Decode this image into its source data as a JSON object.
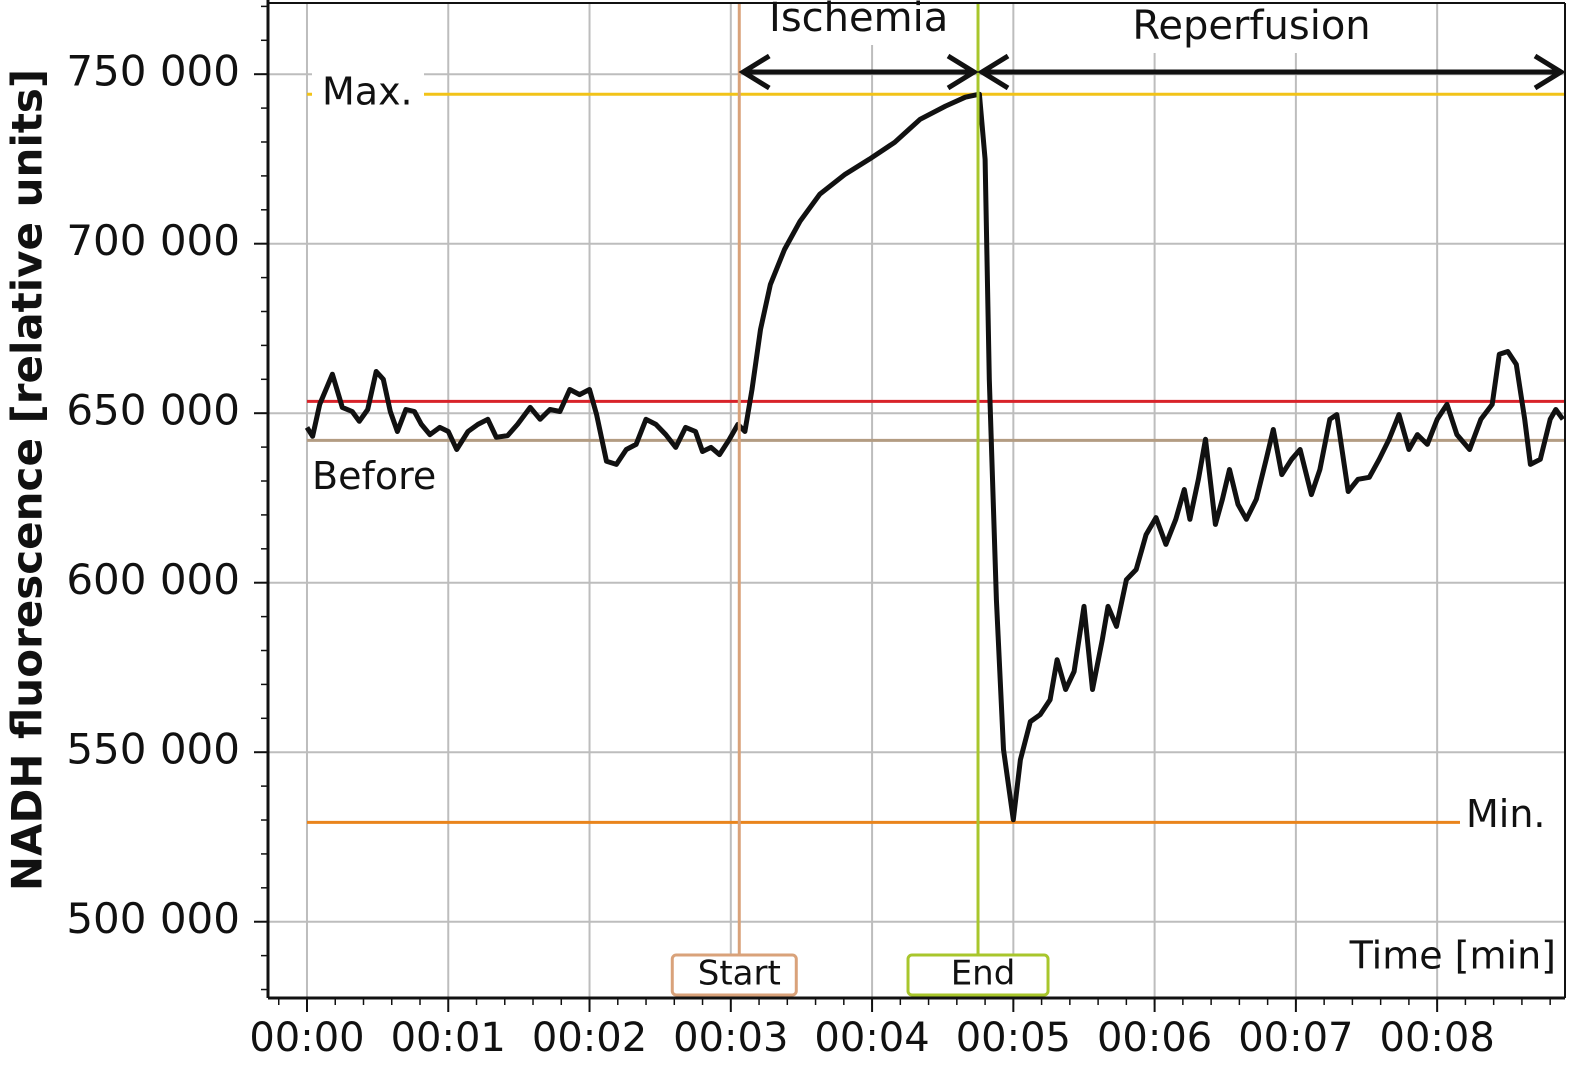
{
  "chart_data": {
    "type": "line",
    "y_label": "NADH fluorescence [relative units]",
    "x_label": "Time [min]",
    "xlim": [
      -0.276,
      8.905
    ],
    "ylim": [
      477500,
      771000
    ],
    "xticks": [
      {
        "value": 0,
        "label": "00:00"
      },
      {
        "value": 1,
        "label": "00:01"
      },
      {
        "value": 2,
        "label": "00:02"
      },
      {
        "value": 3,
        "label": "00:03"
      },
      {
        "value": 4,
        "label": "00:04"
      },
      {
        "value": 5,
        "label": "00:05"
      },
      {
        "value": 6,
        "label": "00:06"
      },
      {
        "value": 7,
        "label": "00:07"
      },
      {
        "value": 8,
        "label": "00:08"
      }
    ],
    "yticks": [
      {
        "value": 500000,
        "label": "500 000"
      },
      {
        "value": 550000,
        "label": "550 000"
      },
      {
        "value": 600000,
        "label": "600 000"
      },
      {
        "value": 650000,
        "label": "650 000"
      },
      {
        "value": 700000,
        "label": "700 000"
      },
      {
        "value": 750000,
        "label": "750 000"
      }
    ],
    "xminor": 0.2,
    "yminor": 10000,
    "grid": true,
    "hlines": [
      {
        "label": "Max.",
        "value": 744100,
        "color": "#f2c318"
      },
      {
        "value": 653500,
        "color": "#d8232a"
      },
      {
        "label": "Before",
        "value": 642000,
        "color": "#b39c82"
      },
      {
        "label": "Min.",
        "value": 529300,
        "color": "#e9841c"
      }
    ],
    "vlines": [
      {
        "label": "Start",
        "value": 3.06,
        "color": "#d9a27a"
      },
      {
        "label": "End",
        "value": 4.75,
        "color": "#a8c62c"
      }
    ],
    "phases": [
      {
        "label": "Ischemia"
      },
      {
        "label": "Reperfusion"
      }
    ],
    "series": [
      {
        "color": "#111111",
        "x": [
          0,
          0.04,
          0.09,
          0.18,
          0.25,
          0.32,
          0.37,
          0.43,
          0.49,
          0.54,
          0.59,
          0.64,
          0.7,
          0.76,
          0.81,
          0.87,
          0.94,
          1.0,
          1.06,
          1.14,
          1.21,
          1.28,
          1.34,
          1.42,
          1.49,
          1.58,
          1.65,
          1.72,
          1.79,
          1.86,
          1.93,
          2.0,
          2.05,
          2.12,
          2.19,
          2.26,
          2.33,
          2.4,
          2.47,
          2.54,
          2.61,
          2.68,
          2.75,
          2.8,
          2.86,
          2.92,
          2.99,
          3.05,
          3.1,
          3.15,
          3.21,
          3.28,
          3.38,
          3.49,
          3.63,
          3.81,
          3.98,
          4.16,
          4.34,
          4.52,
          4.66,
          4.76,
          4.8,
          4.83,
          4.88,
          4.93,
          5.0,
          5.05,
          5.12,
          5.19,
          5.26,
          5.31,
          5.37,
          5.43,
          5.5,
          5.56,
          5.63,
          5.67,
          5.73,
          5.8,
          5.87,
          5.94,
          6.01,
          6.08,
          6.15,
          6.21,
          6.25,
          6.31,
          6.36,
          6.43,
          6.48,
          6.53,
          6.59,
          6.65,
          6.72,
          6.79,
          6.84,
          6.9,
          6.97,
          7.03,
          7.11,
          7.17,
          7.24,
          7.29,
          7.37,
          7.44,
          7.52,
          7.59,
          7.66,
          7.73,
          7.8,
          7.86,
          7.93,
          8.0,
          8.07,
          8.14,
          8.23,
          8.31,
          8.39,
          8.44,
          8.5,
          8.56,
          8.62,
          8.66,
          8.73,
          8.8,
          8.84,
          8.89
        ],
        "values": [
          645800,
          643200,
          652600,
          661500,
          651700,
          650500,
          647600,
          651100,
          662300,
          660000,
          650500,
          644600,
          651100,
          650500,
          646700,
          643700,
          645800,
          644600,
          639300,
          644600,
          646700,
          648200,
          642900,
          643400,
          646700,
          651700,
          648200,
          651100,
          650500,
          657000,
          655500,
          657000,
          649600,
          635800,
          634900,
          639300,
          640800,
          648200,
          646700,
          643700,
          639900,
          645800,
          644600,
          638700,
          639900,
          637800,
          642300,
          646700,
          644600,
          657000,
          674700,
          688000,
          698300,
          706600,
          714600,
          720500,
          724900,
          729900,
          736700,
          740600,
          743200,
          744100,
          724900,
          660000,
          595000,
          550800,
          530100,
          547800,
          559000,
          561100,
          565500,
          577300,
          568500,
          573800,
          593000,
          568500,
          583200,
          593000,
          587100,
          600900,
          603900,
          614200,
          619200,
          611300,
          618700,
          627500,
          618700,
          630500,
          642300,
          617200,
          624600,
          633400,
          623100,
          618700,
          624600,
          636400,
          645200,
          631900,
          636400,
          639300,
          626000,
          633400,
          648200,
          649600,
          626900,
          630500,
          631100,
          636400,
          642300,
          649600,
          639300,
          643700,
          640800,
          648200,
          652600,
          643700,
          639300,
          648200,
          652600,
          667400,
          668200,
          664400,
          648200,
          634900,
          636400,
          648200,
          651100,
          648200
        ]
      }
    ]
  }
}
